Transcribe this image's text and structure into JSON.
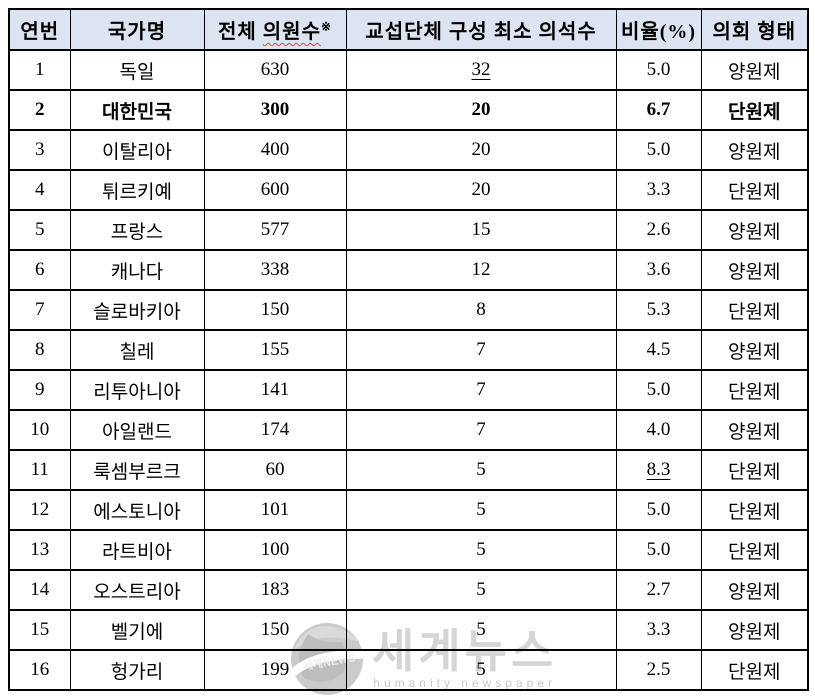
{
  "watermark": {
    "logo": "globe-icon",
    "logo_text": "세계NEWS",
    "title": "세계뉴스",
    "subtitle": "humanity newspaper",
    "title_color": "#d5d5d5",
    "subtitle_color": "#c7c7c7"
  },
  "table": {
    "header_bg": "#dce4f1",
    "border_color": "#000000",
    "columns": [
      {
        "label": "연번"
      },
      {
        "label": "국가명"
      },
      {
        "label": "전체 의원수※",
        "part1": "전체",
        "part2": "의원수",
        "sup": "※",
        "spellcheck_underline": true
      },
      {
        "label": "교섭단체 구성 최소 의석수"
      },
      {
        "label": "비율(%)"
      },
      {
        "label": "의회 형태"
      }
    ],
    "rows": [
      {
        "no": "1",
        "country": "독일",
        "total": "630",
        "min_seats": "32",
        "min_seats_underline": true,
        "ratio": "5.0",
        "ratio_underline": false,
        "type": "양원제",
        "bold": false
      },
      {
        "no": "2",
        "country": "대한민국",
        "total": "300",
        "min_seats": "20",
        "min_seats_underline": false,
        "ratio": "6.7",
        "ratio_underline": false,
        "type": "단원제",
        "bold": true
      },
      {
        "no": "3",
        "country": "이탈리아",
        "total": "400",
        "min_seats": "20",
        "min_seats_underline": false,
        "ratio": "5.0",
        "ratio_underline": false,
        "type": "양원제",
        "bold": false
      },
      {
        "no": "4",
        "country": "튀르키예",
        "total": "600",
        "min_seats": "20",
        "min_seats_underline": false,
        "ratio": "3.3",
        "ratio_underline": false,
        "type": "단원제",
        "bold": false
      },
      {
        "no": "5",
        "country": "프랑스",
        "total": "577",
        "min_seats": "15",
        "min_seats_underline": false,
        "ratio": "2.6",
        "ratio_underline": false,
        "type": "양원제",
        "bold": false
      },
      {
        "no": "6",
        "country": "캐나다",
        "total": "338",
        "min_seats": "12",
        "min_seats_underline": false,
        "ratio": "3.6",
        "ratio_underline": false,
        "type": "양원제",
        "bold": false
      },
      {
        "no": "7",
        "country": "슬로바키아",
        "total": "150",
        "min_seats": "8",
        "min_seats_underline": false,
        "ratio": "5.3",
        "ratio_underline": false,
        "type": "단원제",
        "bold": false
      },
      {
        "no": "8",
        "country": "칠레",
        "total": "155",
        "min_seats": "7",
        "min_seats_underline": false,
        "ratio": "4.5",
        "ratio_underline": false,
        "type": "양원제",
        "bold": false
      },
      {
        "no": "9",
        "country": "리투아니아",
        "total": "141",
        "min_seats": "7",
        "min_seats_underline": false,
        "ratio": "5.0",
        "ratio_underline": false,
        "type": "단원제",
        "bold": false
      },
      {
        "no": "10",
        "country": "아일랜드",
        "total": "174",
        "min_seats": "7",
        "min_seats_underline": false,
        "ratio": "4.0",
        "ratio_underline": false,
        "type": "양원제",
        "bold": false
      },
      {
        "no": "11",
        "country": "룩셈부르크",
        "total": "60",
        "min_seats": "5",
        "min_seats_underline": false,
        "ratio": "8.3",
        "ratio_underline": true,
        "type": "단원제",
        "bold": false
      },
      {
        "no": "12",
        "country": "에스토니아",
        "total": "101",
        "min_seats": "5",
        "min_seats_underline": false,
        "ratio": "5.0",
        "ratio_underline": false,
        "type": "단원제",
        "bold": false
      },
      {
        "no": "13",
        "country": "라트비아",
        "total": "100",
        "min_seats": "5",
        "min_seats_underline": false,
        "ratio": "5.0",
        "ratio_underline": false,
        "type": "단원제",
        "bold": false
      },
      {
        "no": "14",
        "country": "오스트리아",
        "total": "183",
        "min_seats": "5",
        "min_seats_underline": false,
        "ratio": "2.7",
        "ratio_underline": false,
        "type": "양원제",
        "bold": false
      },
      {
        "no": "15",
        "country": "벨기에",
        "total": "150",
        "min_seats": "5",
        "min_seats_underline": false,
        "ratio": "3.3",
        "ratio_underline": false,
        "type": "양원제",
        "bold": false
      },
      {
        "no": "16",
        "country": "헝가리",
        "total": "199",
        "min_seats": "5",
        "min_seats_underline": false,
        "ratio": "2.5",
        "ratio_underline": false,
        "type": "단원제",
        "bold": false
      }
    ]
  }
}
